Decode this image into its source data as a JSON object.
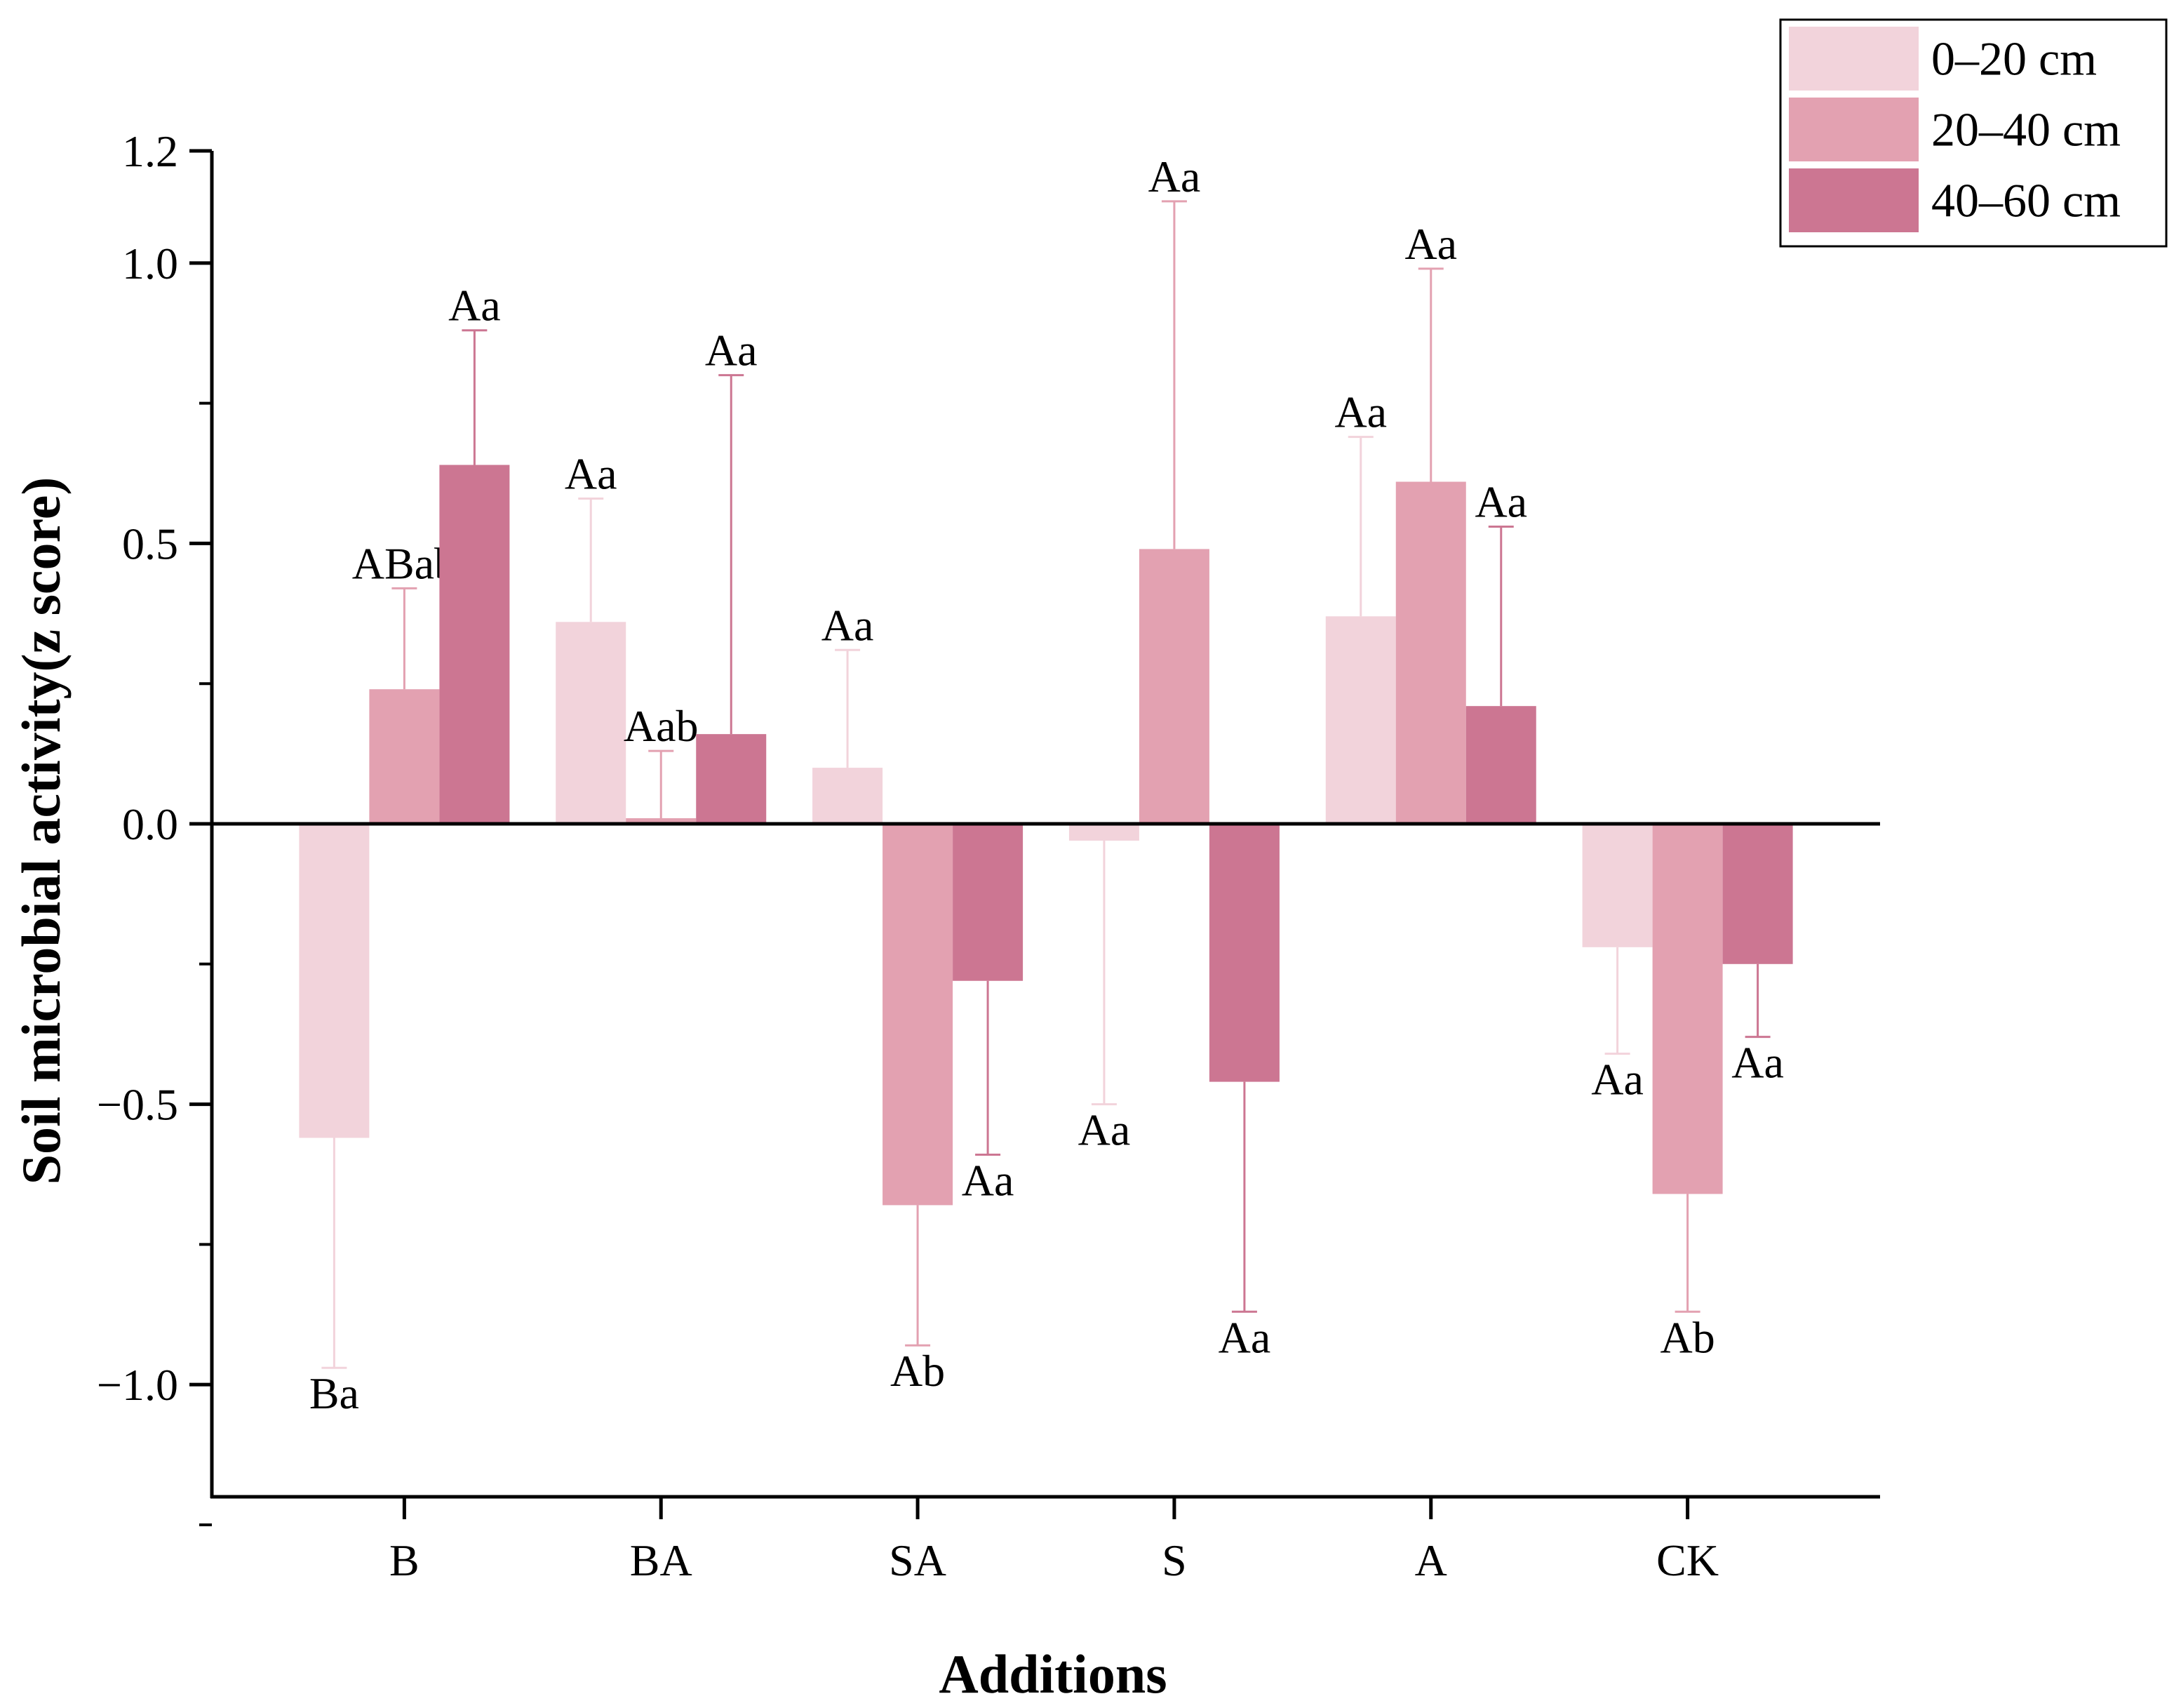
{
  "chart_data": {
    "type": "bar",
    "title": "",
    "xlabel": "Additions",
    "ylabel": "Soil microbial activity(z score)",
    "ylim": [
      -1.2,
      1.2
    ],
    "yticks": [
      {
        "value": 1.2,
        "label": "1.2"
      },
      {
        "value": 1.0,
        "label": "1.0"
      },
      {
        "value": 0.5,
        "label": "0.5"
      },
      {
        "value": 0.0,
        "label": "0.0"
      },
      {
        "value": -0.5,
        "label": "−0.5"
      },
      {
        "value": -1.0,
        "label": "−1.0"
      }
    ],
    "categories": [
      "B",
      "BA",
      "SA",
      "S",
      "A",
      "CK"
    ],
    "legend_position": "top-right",
    "series": [
      {
        "name": "0–20 cm",
        "color": "#f2d3db",
        "values": [
          -0.56,
          0.36,
          0.1,
          -0.03,
          0.37,
          -0.22
        ],
        "errors": [
          0.41,
          0.22,
          0.21,
          0.47,
          0.32,
          0.19
        ],
        "labels": [
          "Ba",
          "Aa",
          "Aa",
          "Aa",
          "Aa",
          "Aa"
        ]
      },
      {
        "name": "20–40 cm",
        "color": "#e3a1b1",
        "values": [
          0.24,
          0.01,
          -0.68,
          0.49,
          0.61,
          -0.66
        ],
        "errors": [
          0.18,
          0.12,
          0.25,
          0.62,
          0.38,
          0.21
        ],
        "labels": [
          "ABab",
          "Aab",
          "Ab",
          "Aa",
          "Aa",
          "Ab"
        ]
      },
      {
        "name": "40–60 cm",
        "color": "#cc7692",
        "values": [
          0.64,
          0.16,
          -0.28,
          -0.46,
          0.21,
          -0.25
        ],
        "errors": [
          0.24,
          0.64,
          0.31,
          0.41,
          0.32,
          0.13
        ],
        "labels": [
          "Aa",
          "Aa",
          "Aa",
          "Aa",
          "Aa",
          "Aa"
        ]
      }
    ]
  }
}
